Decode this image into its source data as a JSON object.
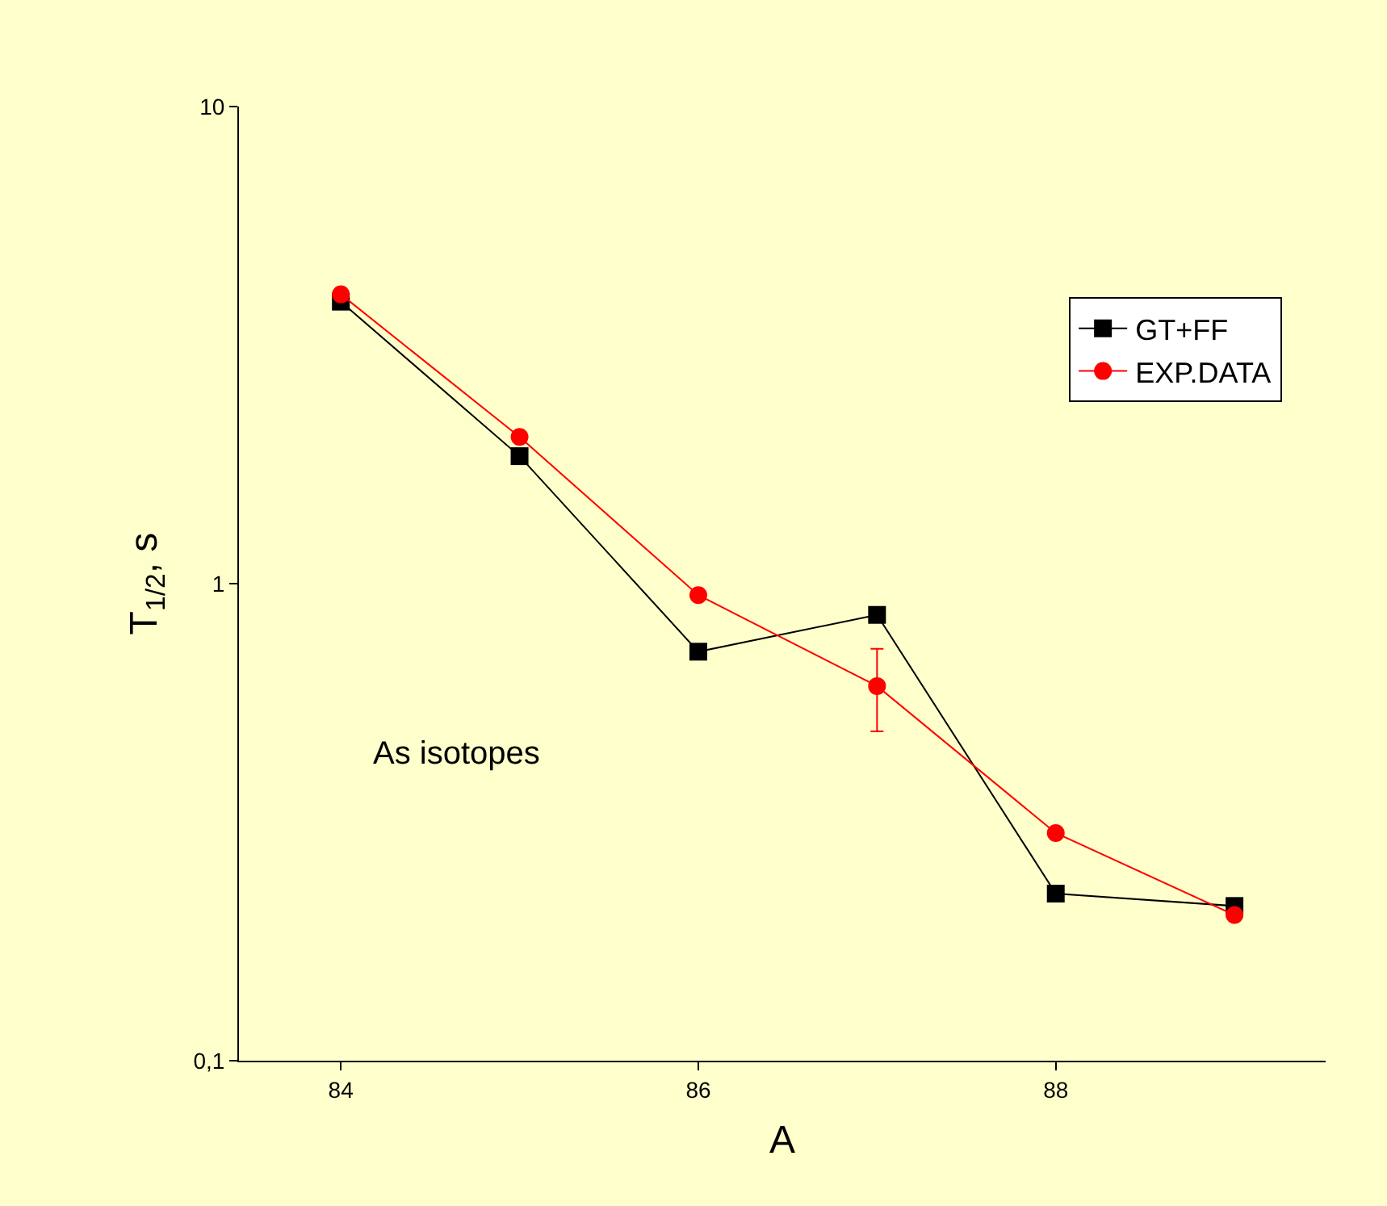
{
  "chart_data": {
    "type": "line",
    "xlabel": "A",
    "ylabel": "T$_{1/2}$, s",
    "x": [
      84,
      85,
      86,
      87,
      88,
      89
    ],
    "series": [
      {
        "name": "GT+FF",
        "color": "#000000",
        "marker": "square",
        "values": [
          3.9,
          1.85,
          0.72,
          0.86,
          0.224,
          0.211
        ]
      },
      {
        "name": "EXP.DATA",
        "color": "#ff0000",
        "marker": "circle",
        "values": [
          4.04,
          2.03,
          0.946,
          0.61,
          0.3,
          0.202
        ],
        "errors": [
          null,
          null,
          null,
          [
            0.49,
            0.73
          ],
          null,
          null
        ]
      }
    ],
    "xlim": [
      83.43,
      89.51
    ],
    "xticks": [
      84,
      86,
      88
    ],
    "ylim": [
      0.1,
      10
    ],
    "yticks": [
      {
        "value": 0.1,
        "label": "0,1"
      },
      1,
      10
    ],
    "log": "y",
    "grid": false,
    "legend": "top right",
    "line_style": "solid",
    "annotations": [
      "As isotopes"
    ]
  }
}
